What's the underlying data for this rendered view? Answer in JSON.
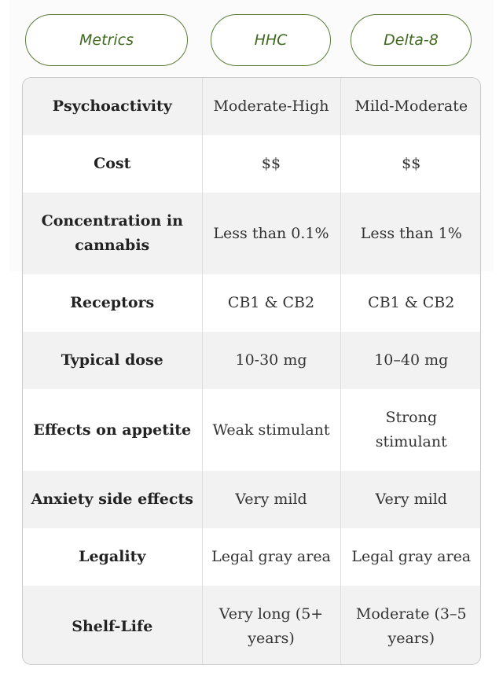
{
  "header": {
    "metrics_label": "Metrics",
    "hhc_label": "HHC",
    "delta8_label": "Delta-8"
  },
  "rows": [
    {
      "metric": "Psychoactivity",
      "hhc": "Moderate-High",
      "delta8": "Mild-Moderate"
    },
    {
      "metric": "Cost",
      "hhc": "$$",
      "delta8": "$$"
    },
    {
      "metric": "Concentration in cannabis",
      "hhc": "Less than 0.1%",
      "delta8": "Less than 1%"
    },
    {
      "metric": "Receptors",
      "hhc": "CB1 & CB2",
      "delta8": "CB1 & CB2"
    },
    {
      "metric": "Typical dose",
      "hhc": "10-30 mg",
      "delta8": "10–40 mg"
    },
    {
      "metric": "Effects on appetite",
      "hhc": "Weak stimulant",
      "delta8": "Strong stimulant"
    },
    {
      "metric": "Anxiety side effects",
      "hhc": "Very mild",
      "delta8": "Very mild"
    },
    {
      "metric": "Legality",
      "hhc": "Legal gray area",
      "delta8": "Legal gray area"
    },
    {
      "metric": "Shelf-Life",
      "hhc": "Very long (5+ years)",
      "delta8": "Moderate (3–5 years)"
    }
  ]
}
